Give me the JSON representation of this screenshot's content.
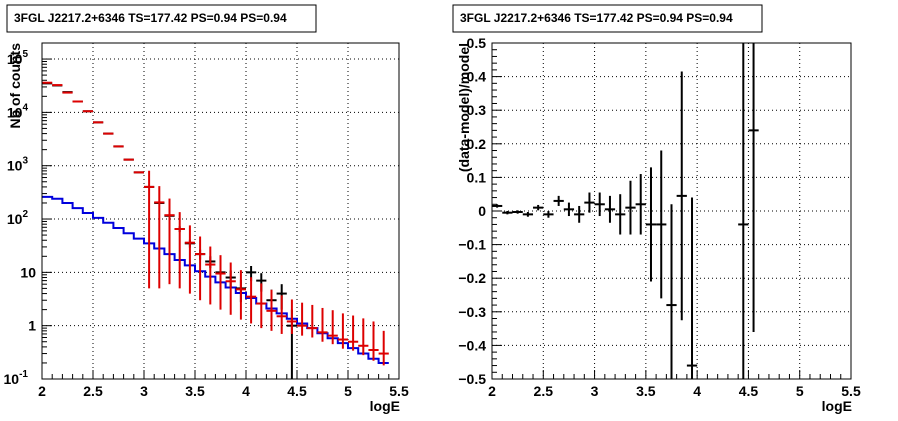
{
  "chart_data": [
    {
      "type": "line",
      "title": "3FGL J2217.2+6346 TS=177.42 PS=0.94 PS=0.94",
      "xlabel": "logE",
      "ylabel": "Nb of counts",
      "xlim": [
        2,
        5.5
      ],
      "ylim": [
        0.1,
        200000
      ],
      "yscale": "log",
      "grid": true,
      "xticks": [
        "2",
        "2.5",
        "3",
        "3.5",
        "4",
        "4.5",
        "5",
        "5.5"
      ],
      "yticks": [
        {
          "value": 0.1,
          "base": "10",
          "exp": "-1"
        },
        {
          "value": 1,
          "base": "1",
          "exp": ""
        },
        {
          "value": 10,
          "base": "10",
          "exp": ""
        },
        {
          "value": 100,
          "base": "10",
          "exp": "2"
        },
        {
          "value": 1000,
          "base": "10",
          "exp": "3"
        },
        {
          "value": 10000,
          "base": "10",
          "exp": "4"
        },
        {
          "value": 100000,
          "base": "10",
          "exp": "5"
        }
      ],
      "colors": {
        "data": "#000000",
        "model_total": "#dd0000",
        "model_source": "#0000dd"
      },
      "bin_edges": [
        2.0,
        2.1,
        2.2,
        2.3,
        2.4,
        2.5,
        2.6,
        2.7,
        2.8,
        2.9,
        3.0,
        3.1,
        3.2,
        3.3,
        3.4,
        3.5,
        3.6,
        3.7,
        3.8,
        3.9,
        4.0,
        4.1,
        4.2,
        4.3,
        4.4,
        4.5,
        4.6,
        4.7,
        4.8,
        4.9,
        5.0,
        5.1,
        5.2,
        5.3,
        5.4,
        5.5
      ],
      "series": [
        {
          "role": "data",
          "x": [
            2.05,
            2.15,
            2.25,
            2.35,
            2.45,
            2.55,
            2.65,
            2.75,
            2.85,
            2.95,
            3.05,
            3.15,
            3.25,
            3.35,
            3.45,
            3.55,
            3.65,
            3.75,
            3.85,
            3.95,
            4.05,
            4.15,
            4.25,
            4.35,
            4.45,
            4.55,
            4.65,
            4.75,
            4.85,
            4.95,
            5.05,
            5.15,
            5.25,
            5.35
          ],
          "y": [
            35000,
            32000,
            24000,
            16000,
            10500,
            6500,
            4000,
            2300,
            1300,
            750,
            400,
            200,
            115,
            65,
            35,
            22,
            16,
            10,
            8,
            5,
            10,
            7,
            3,
            4,
            1,
            1,
            1,
            1,
            1,
            1,
            1,
            1,
            1,
            1
          ],
          "err_low": [
            0,
            0,
            0,
            0,
            0,
            0,
            0,
            0,
            0,
            0,
            0,
            0,
            0,
            0,
            0,
            0,
            0,
            0,
            0,
            0,
            0,
            0,
            0,
            0,
            0,
            0,
            0,
            0,
            0,
            0,
            0,
            0,
            0,
            0
          ],
          "plotted": [
            2.05,
            2.15,
            2.25,
            2.35,
            2.45,
            2.55,
            2.65,
            2.75,
            2.85,
            2.95,
            3.05,
            3.15,
            3.25,
            3.35,
            3.45,
            3.55,
            3.65,
            3.75,
            3.85,
            3.95,
            4.05,
            4.15,
            4.25,
            4.35,
            4.45
          ]
        },
        {
          "role": "model_total",
          "x": [
            2.05,
            2.15,
            2.25,
            2.35,
            2.45,
            2.55,
            2.65,
            2.75,
            2.85,
            2.95,
            3.05,
            3.15,
            3.25,
            3.35,
            3.45,
            3.55,
            3.65,
            3.75,
            3.85,
            3.95,
            4.05,
            4.15,
            4.25,
            4.35,
            4.45,
            4.55,
            4.65,
            4.75,
            4.85,
            4.95,
            5.05,
            5.15,
            5.25,
            5.35
          ],
          "y": [
            36000,
            32500,
            23500,
            16000,
            10500,
            6500,
            4000,
            2300,
            1300,
            750,
            400,
            205,
            118,
            65,
            36,
            22,
            14,
            9.5,
            6.8,
            4.8,
            3.5,
            2.6,
            1.9,
            1.5,
            1.2,
            1.0,
            0.9,
            0.75,
            0.65,
            0.55,
            0.5,
            0.42,
            0.35,
            0.3
          ],
          "err_low": [
            36000,
            32500,
            23500,
            16000,
            10500,
            6500,
            4000,
            2300,
            1300,
            750,
            395,
            200,
            112,
            60,
            32,
            19,
            11.5,
            7.5,
            5.2,
            3.5,
            2.4,
            1.7,
            1.1,
            0.8,
            0.5,
            0.35,
            0.3,
            0.25,
            0.2,
            0.18,
            0.16,
            0.14,
            0.13,
            0.12
          ],
          "err_high": [
            36000,
            32500,
            23500,
            16000,
            10500,
            6500,
            4000,
            2300,
            1300,
            750,
            405,
            210,
            124,
            70,
            40,
            25,
            16.5,
            11.5,
            8.5,
            6.2,
            4.6,
            3.6,
            2.8,
            2.2,
            1.9,
            1.7,
            1.55,
            1.4,
            1.3,
            1.15,
            1.05,
            0.95,
            0.85,
            0.5
          ]
        },
        {
          "role": "model_source",
          "x": [
            2.05,
            2.15,
            2.25,
            2.35,
            2.45,
            2.55,
            2.65,
            2.75,
            2.85,
            2.95,
            3.05,
            3.15,
            3.25,
            3.35,
            3.45,
            3.55,
            3.65,
            3.75,
            3.85,
            3.95,
            4.05,
            4.15,
            4.25,
            4.35,
            4.45,
            4.55,
            4.65,
            4.75,
            4.85,
            4.95,
            5.05,
            5.15,
            5.25,
            5.35
          ],
          "y": [
            260,
            240,
            200,
            160,
            130,
            105,
            85,
            68,
            54,
            43,
            35,
            28,
            22,
            17,
            13.5,
            10.5,
            8.3,
            6.5,
            5.2,
            4.1,
            3.3,
            2.6,
            2.1,
            1.7,
            1.35,
            1.1,
            0.9,
            0.72,
            0.58,
            0.47,
            0.38,
            0.3,
            0.24,
            0.2
          ]
        }
      ]
    },
    {
      "type": "scatter",
      "title": "3FGL J2217.2+6346 TS=177.42 PS=0.94 PS=0.94",
      "xlabel": "logE",
      "ylabel": "(data-model)/model",
      "xlim": [
        2,
        5.5
      ],
      "ylim": [
        -0.5,
        0.5
      ],
      "grid": true,
      "xticks": [
        "2",
        "2.5",
        "3",
        "3.5",
        "4",
        "4.5",
        "5",
        "5.5"
      ],
      "yticks": [
        "−0.5",
        "−0.4",
        "−0.3",
        "−0.2",
        "−0.1",
        "0",
        "0.1",
        "0.2",
        "0.3",
        "0.4",
        "0.5"
      ],
      "series": [
        {
          "x": [
            2.05,
            2.15,
            2.25,
            2.35,
            2.45,
            2.55,
            2.65,
            2.75,
            2.85,
            2.95,
            3.05,
            3.15,
            3.25,
            3.35,
            3.45,
            3.55,
            3.65,
            3.75,
            3.85,
            3.95,
            4.45,
            4.55
          ],
          "y": [
            0.015,
            -0.005,
            -0.003,
            -0.01,
            0.01,
            -0.01,
            0.03,
            0.005,
            -0.01,
            0.025,
            0.02,
            0.005,
            -0.01,
            0.01,
            0.02,
            -0.04,
            -0.04,
            -0.28,
            0.045,
            -0.46,
            -0.04,
            0.24
          ],
          "err": [
            0.005,
            0.005,
            0.005,
            0.007,
            0.008,
            0.01,
            0.015,
            0.02,
            0.025,
            0.03,
            0.035,
            0.04,
            0.06,
            0.08,
            0.09,
            0.17,
            0.22,
            0.3,
            0.37,
            0.5,
            0.6,
            0.6
          ]
        }
      ]
    }
  ]
}
